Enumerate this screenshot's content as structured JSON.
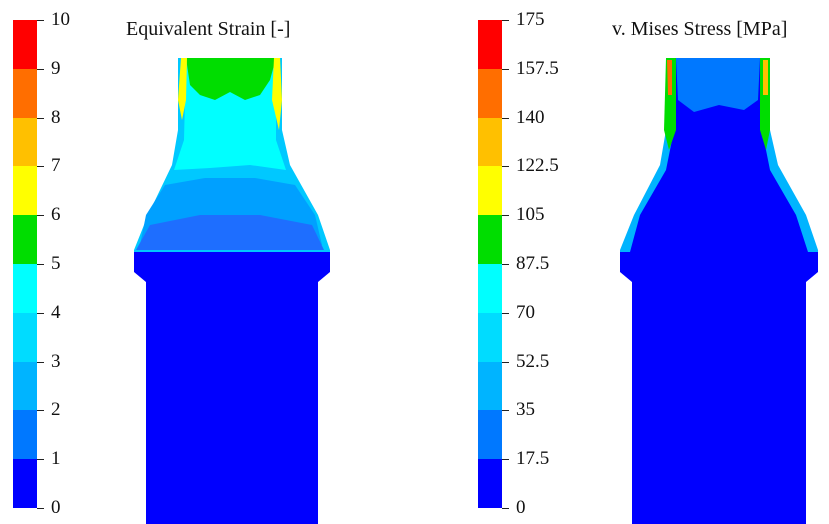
{
  "panels": [
    {
      "title": "Equivalent Strain [-]",
      "legend_ticks": [
        "10",
        "9",
        "8",
        "7",
        "6",
        "5",
        "4",
        "3",
        "2",
        "1",
        "0"
      ],
      "band_colors": [
        "#ff0000",
        "#ff6e00",
        "#ffc000",
        "#ffff00",
        "#00dd00",
        "#00ffff",
        "#00dcff",
        "#00b4ff",
        "#0078ff",
        "#0040ff",
        "#0000ff"
      ]
    },
    {
      "title": "v. Mises Stress [MPa]",
      "legend_ticks": [
        "175",
        "157.5",
        "140",
        "122.5",
        "105",
        "87.5",
        "70",
        "52.5",
        "35",
        "17.5",
        "0"
      ],
      "band_colors": [
        "#ff0000",
        "#ff6e00",
        "#ffc000",
        "#ffff00",
        "#00dd00",
        "#00ffff",
        "#00dcff",
        "#00b4ff",
        "#0078ff",
        "#0040ff",
        "#0000ff"
      ]
    }
  ]
}
